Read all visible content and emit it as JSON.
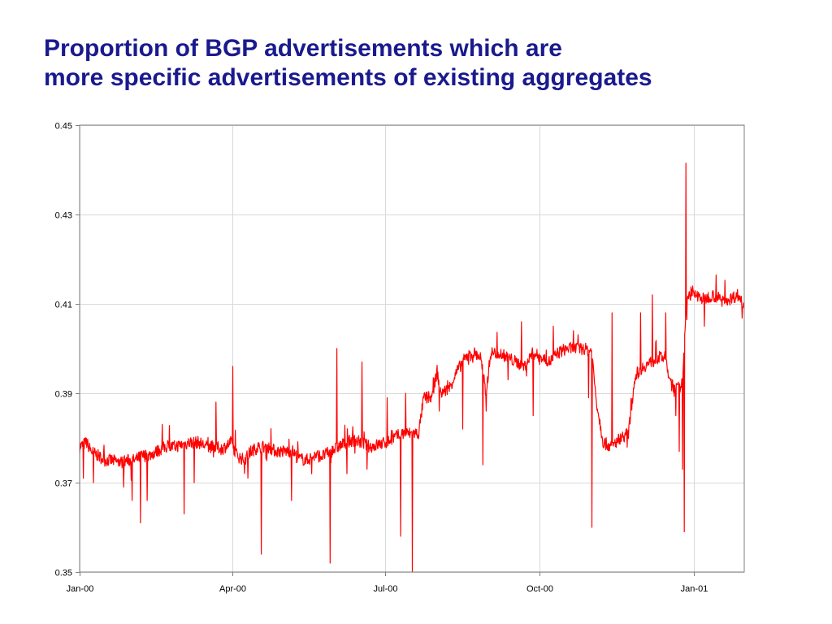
{
  "chart_data": {
    "type": "line",
    "title_lines": [
      "Proportion of BGP advertisements which are",
      "more specific advertisements of existing aggregates"
    ],
    "xlabel": "",
    "ylabel": "",
    "ylim": [
      0.35,
      0.45
    ],
    "xlim": [
      "2000-01-01",
      "2001-01-31"
    ],
    "y_ticks": [
      "0.45",
      "0.43",
      "0.41",
      "0.39",
      "0.37",
      "0.35"
    ],
    "y_tick_values": [
      0.45,
      0.43,
      0.41,
      0.39,
      0.37,
      0.35
    ],
    "x_ticks": [
      {
        "label": "Jan-00",
        "date": "2000-01-01"
      },
      {
        "label": "Apr-00",
        "date": "2000-04-01"
      },
      {
        "label": "Jul-00",
        "date": "2000-07-01"
      },
      {
        "label": "Oct-00",
        "date": "2000-10-01"
      },
      {
        "label": "Jan-01",
        "date": "2001-01-01"
      }
    ],
    "grid": true,
    "series_color": "#ff0000",
    "series": [
      {
        "points": [
          [
            "2000-01-01",
            0.378
          ],
          [
            "2000-01-05",
            0.379
          ],
          [
            "2000-01-08",
            0.377
          ],
          [
            "2000-01-12",
            0.376
          ],
          [
            "2000-01-16",
            0.375
          ],
          [
            "2000-01-20",
            0.375
          ],
          [
            "2000-01-25",
            0.3745
          ],
          [
            "2000-01-30",
            0.375
          ],
          [
            "2000-02-03",
            0.375
          ],
          [
            "2000-02-07",
            0.376
          ],
          [
            "2000-02-11",
            0.376
          ],
          [
            "2000-02-16",
            0.377
          ],
          [
            "2000-02-21",
            0.378
          ],
          [
            "2000-02-26",
            0.378
          ],
          [
            "2000-03-02",
            0.3785
          ],
          [
            "2000-03-07",
            0.379
          ],
          [
            "2000-03-12",
            0.379
          ],
          [
            "2000-03-17",
            0.378
          ],
          [
            "2000-03-22",
            0.378
          ],
          [
            "2000-03-26",
            0.3775
          ],
          [
            "2000-03-31",
            0.379
          ],
          [
            "2000-04-04",
            0.376
          ],
          [
            "2000-04-08",
            0.375
          ],
          [
            "2000-04-12",
            0.377
          ],
          [
            "2000-04-17",
            0.378
          ],
          [
            "2000-04-22",
            0.378
          ],
          [
            "2000-04-27",
            0.377
          ],
          [
            "2000-05-02",
            0.377
          ],
          [
            "2000-05-07",
            0.377
          ],
          [
            "2000-05-10",
            0.3755
          ],
          [
            "2000-05-15",
            0.375
          ],
          [
            "2000-05-20",
            0.376
          ],
          [
            "2000-05-25",
            0.376
          ],
          [
            "2000-05-30",
            0.377
          ],
          [
            "2000-06-03",
            0.378
          ],
          [
            "2000-06-08",
            0.379
          ],
          [
            "2000-06-12",
            0.3795
          ],
          [
            "2000-06-17",
            0.379
          ],
          [
            "2000-06-22",
            0.378
          ],
          [
            "2000-06-27",
            0.3785
          ],
          [
            "2000-07-02",
            0.379
          ],
          [
            "2000-07-06",
            0.38
          ],
          [
            "2000-07-11",
            0.381
          ],
          [
            "2000-07-16",
            0.381
          ],
          [
            "2000-07-21",
            0.381
          ],
          [
            "2000-07-24",
            0.389
          ],
          [
            "2000-07-29",
            0.389
          ],
          [
            "2000-08-01",
            0.395
          ],
          [
            "2000-08-03",
            0.39
          ],
          [
            "2000-08-08",
            0.391
          ],
          [
            "2000-08-13",
            0.395
          ],
          [
            "2000-08-18",
            0.398
          ],
          [
            "2000-08-23",
            0.399
          ],
          [
            "2000-08-27",
            0.398
          ],
          [
            "2000-08-30",
            0.39
          ],
          [
            "2000-09-02",
            0.399
          ],
          [
            "2000-09-07",
            0.399
          ],
          [
            "2000-09-12",
            0.398
          ],
          [
            "2000-09-17",
            0.397
          ],
          [
            "2000-09-22",
            0.396
          ],
          [
            "2000-09-27",
            0.399
          ],
          [
            "2000-10-02",
            0.398
          ],
          [
            "2000-10-07",
            0.397
          ],
          [
            "2000-10-12",
            0.399
          ],
          [
            "2000-10-17",
            0.4
          ],
          [
            "2000-10-22",
            0.4
          ],
          [
            "2000-10-27",
            0.4
          ],
          [
            "2000-11-01",
            0.3995
          ],
          [
            "2000-11-04",
            0.388
          ],
          [
            "2000-11-08",
            0.379
          ],
          [
            "2000-11-13",
            0.378
          ],
          [
            "2000-11-18",
            0.38
          ],
          [
            "2000-11-23",
            0.381
          ],
          [
            "2000-11-27",
            0.394
          ],
          [
            "2000-12-02",
            0.396
          ],
          [
            "2000-12-07",
            0.397
          ],
          [
            "2000-12-11",
            0.398
          ],
          [
            "2000-12-15",
            0.398
          ],
          [
            "2000-12-18",
            0.392
          ],
          [
            "2000-12-22",
            0.391
          ],
          [
            "2000-12-25",
            0.392
          ],
          [
            "2000-12-28",
            0.412
          ],
          [
            "2001-01-02",
            0.412
          ],
          [
            "2001-01-07",
            0.411
          ],
          [
            "2001-01-12",
            0.412
          ],
          [
            "2001-01-17",
            0.411
          ],
          [
            "2001-01-22",
            0.411
          ],
          [
            "2001-01-27",
            0.412
          ],
          [
            "2001-01-31",
            0.41
          ]
        ],
        "spikes": [
          [
            "2000-01-03",
            0.371
          ],
          [
            "2000-01-09",
            0.37
          ],
          [
            "2000-01-27",
            0.369
          ],
          [
            "2000-02-01",
            0.366
          ],
          [
            "2000-02-06",
            0.361
          ],
          [
            "2000-02-10",
            0.366
          ],
          [
            "2000-02-19",
            0.383
          ],
          [
            "2000-03-03",
            0.363
          ],
          [
            "2000-03-09",
            0.37
          ],
          [
            "2000-03-22",
            0.388
          ],
          [
            "2000-04-01",
            0.396
          ],
          [
            "2000-04-10",
            0.371
          ],
          [
            "2000-04-18",
            0.354
          ],
          [
            "2000-05-06",
            0.366
          ],
          [
            "2000-05-18",
            0.372
          ],
          [
            "2000-05-29",
            0.352
          ],
          [
            "2000-06-02",
            0.4
          ],
          [
            "2000-06-08",
            0.372
          ],
          [
            "2000-06-17",
            0.397
          ],
          [
            "2000-06-20",
            0.373
          ],
          [
            "2000-07-02",
            0.389
          ],
          [
            "2000-07-10",
            0.358
          ],
          [
            "2000-07-13",
            0.39
          ],
          [
            "2000-07-17",
            0.35
          ],
          [
            "2000-08-02",
            0.386
          ],
          [
            "2000-08-16",
            0.382
          ],
          [
            "2000-08-28",
            0.374
          ],
          [
            "2000-08-30",
            0.386
          ],
          [
            "2000-09-12",
            0.393
          ],
          [
            "2000-09-20",
            0.406
          ],
          [
            "2000-09-27",
            0.385
          ],
          [
            "2000-10-09",
            0.405
          ],
          [
            "2000-10-21",
            0.404
          ],
          [
            "2000-10-30",
            0.389
          ],
          [
            "2000-11-01",
            0.36
          ],
          [
            "2000-11-13",
            0.408
          ],
          [
            "2000-11-30",
            0.408
          ],
          [
            "2000-12-07",
            0.412
          ],
          [
            "2000-12-15",
            0.408
          ],
          [
            "2000-12-21",
            0.385
          ],
          [
            "2000-12-23",
            0.377
          ],
          [
            "2000-12-25",
            0.373
          ],
          [
            "2000-12-26",
            0.359
          ],
          [
            "2000-12-27",
            0.4415
          ],
          [
            "2000-12-31",
            0.414
          ],
          [
            "2001-01-07",
            0.405
          ],
          [
            "2001-01-14",
            0.4165
          ]
        ]
      }
    ]
  }
}
